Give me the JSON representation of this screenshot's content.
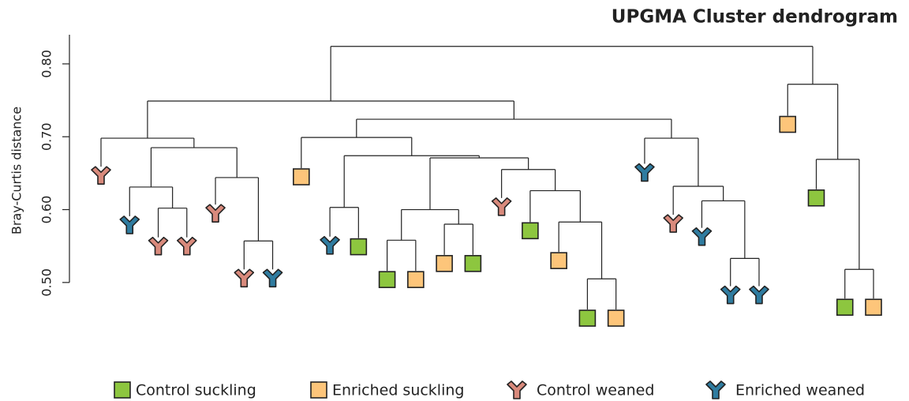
{
  "chart_data": {
    "type": "dendrogram",
    "title": "UPGMA Cluster dendrogram",
    "ylabel": "Bray-Curtis distance",
    "ylim": [
      0.45,
      0.84
    ],
    "yticks": [
      {
        "value": 0.5,
        "label": "0.50"
      },
      {
        "value": 0.6,
        "label": "0.60"
      },
      {
        "value": 0.7,
        "label": "0.70"
      },
      {
        "value": 0.8,
        "label": "0.80"
      }
    ],
    "legend": [
      {
        "name": "Control suckling",
        "color": "#8dc63f",
        "shape": "square"
      },
      {
        "name": "Enriched suckling",
        "color": "#fdc57a",
        "shape": "square"
      },
      {
        "name": "Control weaned",
        "color": "#d98a7c",
        "shape": "y"
      },
      {
        "name": "Enriched weaned",
        "color": "#2f7ca0",
        "shape": "y"
      }
    ],
    "tree": {
      "height": 0.824,
      "children": [
        {
          "height": 0.749,
          "children": [
            {
              "height": 0.698,
              "children": [
                {
                  "group": "Control weaned",
                  "height": 0.647
                },
                {
                  "height": 0.685,
                  "children": [
                    {
                      "height": 0.631,
                      "children": [
                        {
                          "group": "Enriched weaned",
                          "height": 0.579
                        },
                        {
                          "height": 0.602,
                          "children": [
                            {
                              "group": "Control weaned",
                              "height": 0.55
                            },
                            {
                              "group": "Control weaned",
                              "height": 0.55
                            }
                          ]
                        }
                      ]
                    },
                    {
                      "height": 0.644,
                      "children": [
                        {
                          "group": "Control weaned",
                          "height": 0.595
                        },
                        {
                          "height": 0.557,
                          "children": [
                            {
                              "group": "Control weaned",
                              "height": 0.506
                            },
                            {
                              "group": "Enriched weaned",
                              "height": 0.506
                            }
                          ]
                        }
                      ]
                    }
                  ]
                }
              ]
            },
            {
              "height": 0.724,
              "children": [
                {
                  "height": 0.699,
                  "children": [
                    {
                      "group": "Enriched suckling",
                      "height": 0.645
                    },
                    {
                      "height": 0.674,
                      "children": [
                        {
                          "height": 0.603,
                          "children": [
                            {
                              "group": "Enriched weaned",
                              "height": 0.551
                            },
                            {
                              "group": "Control suckling",
                              "height": 0.549
                            }
                          ]
                        },
                        {
                          "height": 0.671,
                          "children": [
                            {
                              "height": 0.6,
                              "children": [
                                {
                                  "height": 0.558,
                                  "children": [
                                    {
                                      "group": "Control suckling",
                                      "height": 0.504
                                    },
                                    {
                                      "group": "Enriched suckling",
                                      "height": 0.504
                                    }
                                  ]
                                },
                                {
                                  "height": 0.58,
                                  "children": [
                                    {
                                      "group": "Enriched suckling",
                                      "height": 0.526
                                    },
                                    {
                                      "group": "Control suckling",
                                      "height": 0.526
                                    }
                                  ]
                                }
                              ]
                            },
                            {
                              "height": 0.655,
                              "children": [
                                {
                                  "group": "Control weaned",
                                  "height": 0.604
                                },
                                {
                                  "height": 0.626,
                                  "children": [
                                    {
                                      "group": "Control suckling",
                                      "height": 0.571
                                    },
                                    {
                                      "height": 0.583,
                                      "children": [
                                        {
                                          "group": "Enriched suckling",
                                          "height": 0.53
                                        },
                                        {
                                          "height": 0.505,
                                          "children": [
                                            {
                                              "group": "Control suckling",
                                              "height": 0.451
                                            },
                                            {
                                              "group": "Enriched suckling",
                                              "height": 0.451
                                            }
                                          ]
                                        }
                                      ]
                                    }
                                  ]
                                }
                              ]
                            }
                          ]
                        }
                      ]
                    }
                  ]
                },
                {
                  "height": 0.698,
                  "children": [
                    {
                      "group": "Enriched weaned",
                      "height": 0.651
                    },
                    {
                      "height": 0.632,
                      "children": [
                        {
                          "group": "Control weaned",
                          "height": 0.581
                        },
                        {
                          "height": 0.612,
                          "children": [
                            {
                              "group": "Enriched weaned",
                              "height": 0.563
                            },
                            {
                              "height": 0.533,
                              "children": [
                                {
                                  "group": "Enriched weaned",
                                  "height": 0.483
                                },
                                {
                                  "group": "Enriched weaned",
                                  "height": 0.483
                                }
                              ]
                            }
                          ]
                        }
                      ]
                    }
                  ]
                }
              ]
            }
          ]
        },
        {
          "height": 0.772,
          "children": [
            {
              "group": "Enriched suckling",
              "height": 0.717
            },
            {
              "height": 0.669,
              "children": [
                {
                  "group": "Control suckling",
                  "height": 0.616
                },
                {
                  "height": 0.518,
                  "children": [
                    {
                      "group": "Control suckling",
                      "height": 0.466
                    },
                    {
                      "group": "Enriched suckling",
                      "height": 0.466
                    }
                  ]
                }
              ]
            }
          ]
        }
      ]
    }
  }
}
